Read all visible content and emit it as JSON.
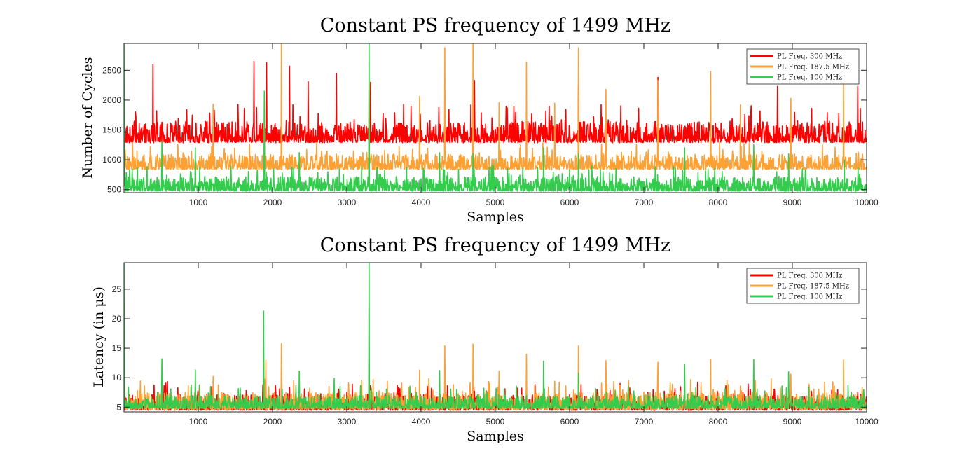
{
  "chart_data": [
    {
      "type": "line",
      "title": "Constant PS frequency of 1499 MHz",
      "xlabel": "Samples",
      "ylabel": "Number of Cycles",
      "xlim": [
        0,
        10000
      ],
      "ylim": [
        450,
        2950
      ],
      "x_ticks": [
        1000,
        2000,
        3000,
        4000,
        5000,
        6000,
        7000,
        8000,
        9000,
        10000
      ],
      "y_ticks": [
        500,
        1000,
        1500,
        2000,
        2500
      ],
      "legend": "top-right",
      "grid": false,
      "series": [
        {
          "name": "PL Freq. 300 MHz",
          "color": "#ff0000",
          "baseline": 1300,
          "noise_range": [
            1250,
            1650
          ],
          "spikes": [
            {
              "x": 390,
              "y": 2600
            },
            {
              "x": 1750,
              "y": 2650
            },
            {
              "x": 1920,
              "y": 2630
            },
            {
              "x": 2230,
              "y": 2570
            },
            {
              "x": 2480,
              "y": 2310
            },
            {
              "x": 2860,
              "y": 2450
            },
            {
              "x": 3320,
              "y": 2300
            },
            {
              "x": 4720,
              "y": 2330
            },
            {
              "x": 6120,
              "y": 2250
            },
            {
              "x": 7190,
              "y": 2380
            },
            {
              "x": 8800,
              "y": 2230
            },
            {
              "x": 9880,
              "y": 2230
            }
          ]
        },
        {
          "name": "PL Freq. 187.5 MHz",
          "color": "#ffa033",
          "baseline": 850,
          "noise_range": [
            800,
            1100
          ],
          "spikes": [
            {
              "x": 1200,
              "y": 1930
            },
            {
              "x": 1890,
              "y": 1990
            },
            {
              "x": 2120,
              "y": 2950
            },
            {
              "x": 3300,
              "y": 2100
            },
            {
              "x": 3980,
              "y": 2060
            },
            {
              "x": 4320,
              "y": 2880
            },
            {
              "x": 4700,
              "y": 2950
            },
            {
              "x": 5050,
              "y": 1960
            },
            {
              "x": 5420,
              "y": 2640
            },
            {
              "x": 5800,
              "y": 1950
            },
            {
              "x": 6120,
              "y": 2880
            },
            {
              "x": 6490,
              "y": 2180
            },
            {
              "x": 7190,
              "y": 2330
            },
            {
              "x": 7900,
              "y": 2480
            },
            {
              "x": 8300,
              "y": 1920
            },
            {
              "x": 8980,
              "y": 2030
            },
            {
              "x": 9690,
              "y": 2390
            }
          ]
        },
        {
          "name": "PL Freq. 100 MHz",
          "color": "#33cc4d",
          "baseline": 480,
          "noise_range": [
            460,
            720
          ],
          "spikes": [
            {
              "x": 0,
              "y": 2950
            },
            {
              "x": 510,
              "y": 1300
            },
            {
              "x": 960,
              "y": 1200
            },
            {
              "x": 1890,
              "y": 2150
            },
            {
              "x": 2360,
              "y": 1120
            },
            {
              "x": 3300,
              "y": 2950
            },
            {
              "x": 4250,
              "y": 1120
            },
            {
              "x": 4700,
              "y": 1100
            },
            {
              "x": 5650,
              "y": 1200
            },
            {
              "x": 6120,
              "y": 1100
            },
            {
              "x": 7550,
              "y": 1200
            },
            {
              "x": 8480,
              "y": 1250
            },
            {
              "x": 8950,
              "y": 1100
            },
            {
              "x": 9700,
              "y": 1000
            }
          ]
        }
      ]
    },
    {
      "type": "line",
      "title": "Constant PS frequency of 1499 MHz",
      "xlabel": "Samples",
      "ylabel": "Latency (in μs)",
      "xlim": [
        0,
        10000
      ],
      "ylim": [
        4.2,
        29.5
      ],
      "x_ticks": [
        1000,
        2000,
        3000,
        4000,
        5000,
        6000,
        7000,
        8000,
        9000,
        10000
      ],
      "y_ticks": [
        5,
        10,
        15,
        20,
        25
      ],
      "legend": "top-right",
      "grid": false,
      "series": [
        {
          "name": "PL Freq. 300 MHz",
          "color": "#ff0000",
          "baseline": 4.5,
          "noise_range": [
            4.4,
            7.2
          ],
          "spikes": [
            {
              "x": 1870,
              "y": 8.8
            },
            {
              "x": 2230,
              "y": 8.4
            },
            {
              "x": 2480,
              "y": 7.6
            },
            {
              "x": 3320,
              "y": 7.6
            },
            {
              "x": 4720,
              "y": 7.7
            },
            {
              "x": 6120,
              "y": 7.5
            },
            {
              "x": 7190,
              "y": 7.8
            },
            {
              "x": 9880,
              "y": 7.5
            }
          ]
        },
        {
          "name": "PL Freq. 187.5 MHz",
          "color": "#ffa033",
          "baseline": 4.6,
          "noise_range": [
            4.6,
            7.5
          ],
          "spikes": [
            {
              "x": 1200,
              "y": 10.2
            },
            {
              "x": 1910,
              "y": 13.0
            },
            {
              "x": 2120,
              "y": 15.8
            },
            {
              "x": 3300,
              "y": 12.7
            },
            {
              "x": 3980,
              "y": 11.3
            },
            {
              "x": 4320,
              "y": 15.4
            },
            {
              "x": 4700,
              "y": 15.7
            },
            {
              "x": 5050,
              "y": 11.1
            },
            {
              "x": 5420,
              "y": 14.0
            },
            {
              "x": 5800,
              "y": 9.4
            },
            {
              "x": 6120,
              "y": 15.4
            },
            {
              "x": 6490,
              "y": 12.9
            },
            {
              "x": 7190,
              "y": 12.6
            },
            {
              "x": 7900,
              "y": 13.1
            },
            {
              "x": 8300,
              "y": 8.6
            },
            {
              "x": 8980,
              "y": 10.6
            },
            {
              "x": 9690,
              "y": 13.0
            }
          ]
        },
        {
          "name": "PL Freq. 100 MHz",
          "color": "#33cc4d",
          "baseline": 4.8,
          "noise_range": [
            4.8,
            7.0
          ],
          "spikes": [
            {
              "x": 0,
              "y": 29.5
            },
            {
              "x": 510,
              "y": 13.2
            },
            {
              "x": 960,
              "y": 11.3
            },
            {
              "x": 1880,
              "y": 21.3
            },
            {
              "x": 2360,
              "y": 11.1
            },
            {
              "x": 2830,
              "y": 9.9
            },
            {
              "x": 3300,
              "y": 29.5
            },
            {
              "x": 4250,
              "y": 11.2
            },
            {
              "x": 5650,
              "y": 12.8
            },
            {
              "x": 6120,
              "y": 10.8
            },
            {
              "x": 7550,
              "y": 12.2
            },
            {
              "x": 8480,
              "y": 13.1
            },
            {
              "x": 8950,
              "y": 11.0
            },
            {
              "x": 9750,
              "y": 8.7
            }
          ]
        }
      ]
    }
  ]
}
